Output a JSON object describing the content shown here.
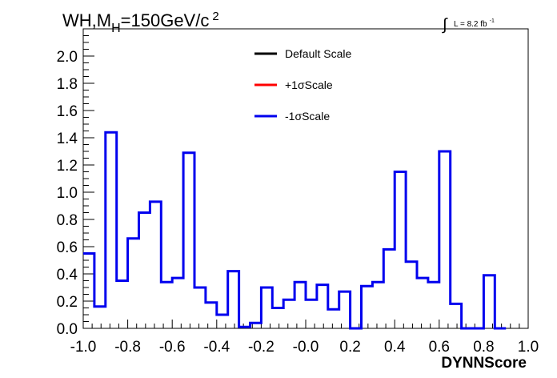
{
  "chart_data": {
    "type": "line",
    "title_parts": {
      "prefix": "WH,M",
      "sub": "H",
      "suffix": "=150GeV/c",
      "sup": "2"
    },
    "lumi_parts": {
      "integral": "∫",
      "text": "L = 8.2 fb",
      "sup": "-1"
    },
    "xlabel": "DYNNScore",
    "ylabel": "",
    "xlim": [
      -1.0,
      1.0
    ],
    "ylim": [
      0.0,
      2.2
    ],
    "x_ticks": [
      "-1.0",
      "-0.8",
      "-0.6",
      "-0.4",
      "-0.2",
      "-0.0",
      "0.2",
      "0.4",
      "0.6",
      "0.8",
      "1.0"
    ],
    "y_ticks": [
      "0.0",
      "0.2",
      "0.4",
      "0.6",
      "0.8",
      "1.0",
      "1.2",
      "1.4",
      "1.6",
      "1.8",
      "2.0"
    ],
    "grid": false,
    "legend_position": "top-center",
    "bin_edges_from": -1.0,
    "bin_width": 0.05,
    "series": [
      {
        "name": "Default Scale",
        "color": "#000000",
        "drawn": false
      },
      {
        "name": "+1σScale",
        "color": "#ff0000",
        "drawn": false
      },
      {
        "name": "-1σScale",
        "color": "#0000ee",
        "drawn": true,
        "values": [
          0.55,
          0.16,
          1.44,
          0.35,
          0.66,
          0.85,
          0.93,
          0.34,
          0.37,
          1.29,
          0.3,
          0.19,
          0.1,
          0.42,
          0.01,
          0.04,
          0.3,
          0.15,
          0.21,
          0.34,
          0.21,
          0.32,
          0.14,
          0.27,
          0.0,
          0.31,
          0.34,
          0.58,
          1.15,
          0.49,
          0.37,
          0.34,
          1.3,
          0.18,
          0.0,
          0.0,
          0.39,
          0.0
        ]
      }
    ]
  }
}
